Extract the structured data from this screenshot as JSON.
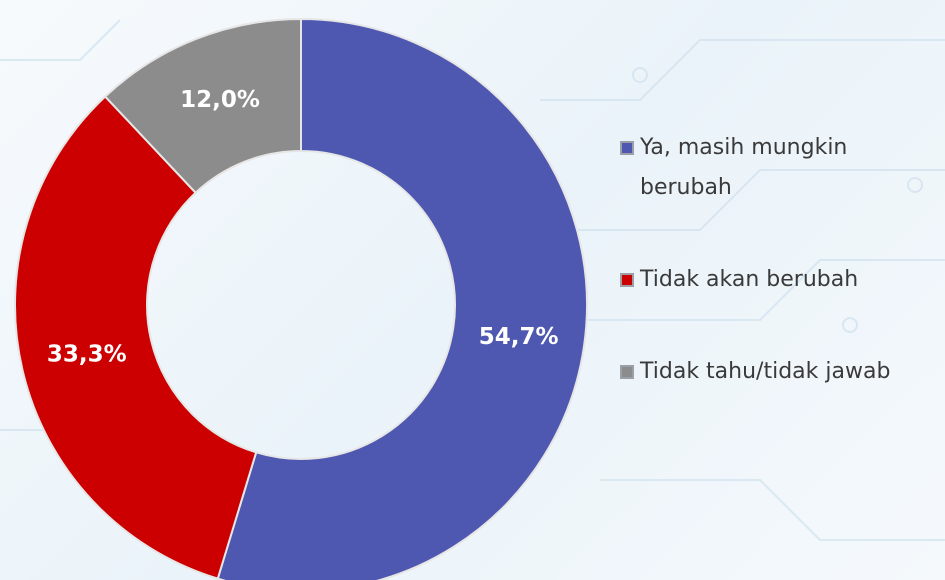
{
  "chart_data": {
    "type": "donut",
    "categories": [
      "Ya, masih mungkin berubah",
      "Tidak akan berubah",
      "Tidak tahu/tidak jawab"
    ],
    "values": [
      54.7,
      33.3,
      12.0
    ],
    "value_labels": [
      "54,7%",
      "33,3%",
      "12,0%"
    ],
    "colors": [
      "#4f58b0",
      "#cc0000",
      "#8c8c8c"
    ],
    "legend": "right"
  }
}
